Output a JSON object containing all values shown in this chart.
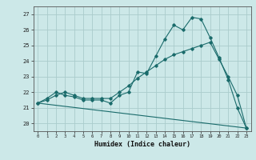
{
  "title": "",
  "xlabel": "Humidex (Indice chaleur)",
  "background_color": "#cce8e8",
  "grid_color": "#aacccc",
  "line_color": "#1a6b6b",
  "xlim": [
    -0.5,
    23.5
  ],
  "ylim": [
    19.5,
    27.5
  ],
  "yticks": [
    20,
    21,
    22,
    23,
    24,
    25,
    26,
    27
  ],
  "xticks": [
    0,
    1,
    2,
    3,
    4,
    5,
    6,
    7,
    8,
    9,
    10,
    11,
    12,
    13,
    14,
    15,
    16,
    17,
    18,
    19,
    20,
    21,
    22,
    23
  ],
  "curve1_x": [
    0,
    1,
    2,
    3,
    4,
    5,
    6,
    7,
    8,
    9,
    10,
    11,
    12,
    13,
    14,
    15,
    16,
    17,
    18,
    19,
    20,
    21,
    22,
    23
  ],
  "curve1_y": [
    21.3,
    21.6,
    22.0,
    21.8,
    21.7,
    21.5,
    21.5,
    21.5,
    21.3,
    21.8,
    22.0,
    23.3,
    23.2,
    24.3,
    25.4,
    26.3,
    26.0,
    26.8,
    26.7,
    25.5,
    24.2,
    22.8,
    21.0,
    19.7
  ],
  "curve2_x": [
    0,
    1,
    2,
    3,
    4,
    5,
    6,
    7,
    8,
    9,
    10,
    11,
    12,
    13,
    14,
    15,
    16,
    17,
    18,
    19,
    20,
    21,
    22,
    23
  ],
  "curve2_y": [
    21.3,
    21.5,
    21.8,
    22.0,
    21.8,
    21.6,
    21.6,
    21.6,
    21.6,
    22.0,
    22.4,
    22.9,
    23.3,
    23.7,
    24.1,
    24.4,
    24.6,
    24.8,
    25.0,
    25.2,
    24.1,
    23.0,
    21.8,
    19.7
  ],
  "curve3_x": [
    0,
    23
  ],
  "curve3_y": [
    21.3,
    19.7
  ]
}
